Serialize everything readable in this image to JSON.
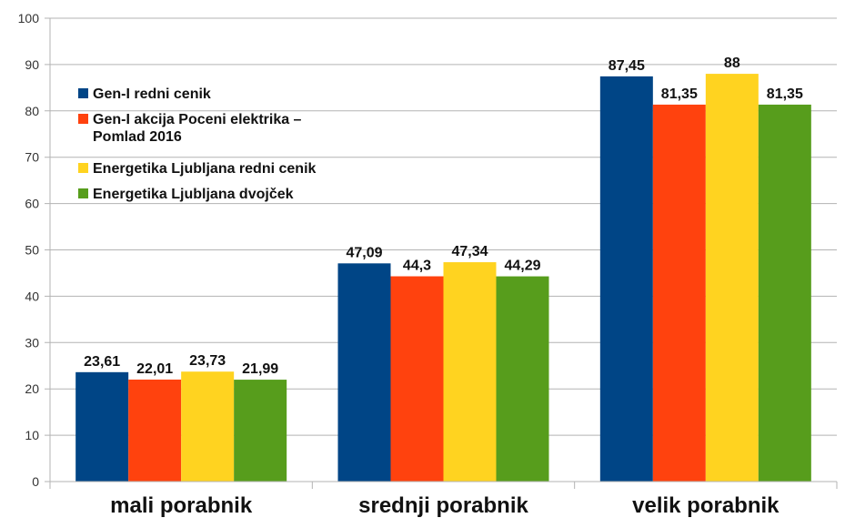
{
  "chart_data": {
    "type": "bar",
    "title": "",
    "xlabel": "",
    "ylabel": "",
    "ylim": [
      0,
      100
    ],
    "yticks": [
      0,
      10,
      20,
      30,
      40,
      50,
      60,
      70,
      80,
      90,
      100
    ],
    "grid": true,
    "legend_position": "top-left",
    "categories": [
      "mali porabnik",
      "srednji porabnik",
      "velik porabnik"
    ],
    "series": [
      {
        "name": "Gen-I redni cenik",
        "legend_lines": [
          "Gen-I redni cenik"
        ],
        "color": "#004586",
        "values": [
          23.61,
          47.09,
          87.45
        ],
        "labels": [
          "23,61",
          "47,09",
          "87,45"
        ]
      },
      {
        "name": "Gen-I akcija Poceni elektrika – Pomlad 2016",
        "legend_lines": [
          "Gen-I akcija Poceni elektrika –",
          "Pomlad 2016"
        ],
        "color": "#ff420e",
        "values": [
          22.01,
          44.3,
          81.35
        ],
        "labels": [
          "22,01",
          "44,3",
          "81,35"
        ]
      },
      {
        "name": "Energetika Ljubljana redni cenik",
        "legend_lines": [
          "Energetika Ljubljana redni cenik"
        ],
        "color": "#ffd320",
        "values": [
          23.73,
          47.34,
          88
        ],
        "labels": [
          "23,73",
          "47,34",
          "88"
        ]
      },
      {
        "name": "Energetika Ljubljana dvojček",
        "legend_lines": [
          "Energetika Ljubljana dvojček"
        ],
        "color": "#579d1c",
        "values": [
          21.99,
          44.29,
          81.35
        ],
        "labels": [
          "21,99",
          "44,29",
          "81,35"
        ]
      }
    ]
  }
}
